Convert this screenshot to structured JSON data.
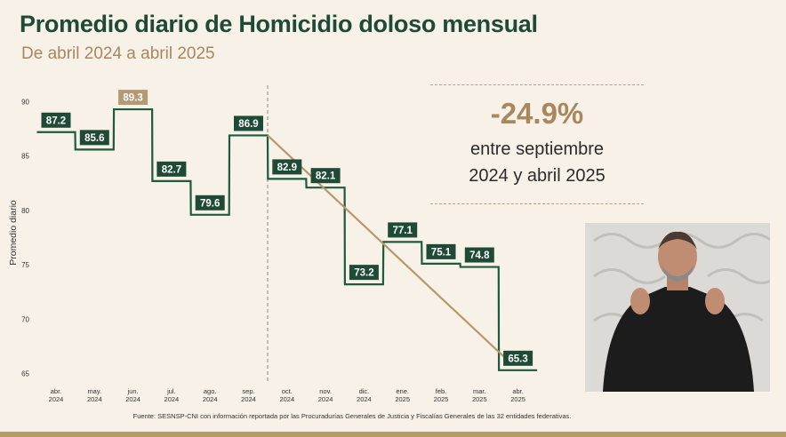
{
  "header": {
    "title": "Promedio diario de Homicidio doloso mensual",
    "subtitle": "De abril 2024 a abril 2025"
  },
  "stat": {
    "percent": "-24.9%",
    "line1": "entre septiembre",
    "line2": "2024 y abril 2025"
  },
  "source": "Fuente: SESNSP-CNI con información reportada por las Procuradurías Generales de Justicia y Fiscalías Generales de las 32 entidades federativas.",
  "colors": {
    "line": "#1f5a3f",
    "label_bg": "#1f4a36",
    "highlight_bg": "#b39a72",
    "trend": "#b8986a",
    "title": "#1f4a36",
    "subtitle": "#a8875e"
  },
  "chart_data": {
    "type": "line",
    "step": true,
    "title": "Promedio diario de Homicidio doloso mensual",
    "subtitle": "De abril 2024 a abril 2025",
    "ylabel": "Promedio diario",
    "ylim": [
      64,
      91
    ],
    "yticks": [
      65,
      70,
      75,
      80,
      85,
      90
    ],
    "categories": [
      [
        "abr.",
        "2024"
      ],
      [
        "may.",
        "2024"
      ],
      [
        "jun.",
        "2024"
      ],
      [
        "jul.",
        "2024"
      ],
      [
        "ago.",
        "2024"
      ],
      [
        "sep.",
        "2024"
      ],
      [
        "oct.",
        "2024"
      ],
      [
        "nov.",
        "2024"
      ],
      [
        "dic.",
        "2024"
      ],
      [
        "ene.",
        "2025"
      ],
      [
        "feb.",
        "2025"
      ],
      [
        "mar.",
        "2025"
      ],
      [
        "abr.",
        "2025"
      ]
    ],
    "values": [
      87.2,
      85.6,
      89.3,
      82.7,
      79.6,
      86.9,
      82.9,
      82.1,
      73.2,
      77.1,
      75.1,
      74.8,
      65.3
    ],
    "data_labels": [
      "87.2",
      "85.6",
      "89.3",
      "82.7",
      "79.6",
      "86.9",
      "82.9",
      "82.1",
      "73.2",
      "77.1",
      "75.1",
      "74.8",
      "65.3"
    ],
    "highlight_index": 2,
    "divider_after_index": 5,
    "trend": {
      "from_index": 5,
      "to_index": 12
    }
  }
}
